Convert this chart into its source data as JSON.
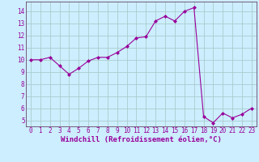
{
  "x": [
    0,
    1,
    2,
    3,
    4,
    5,
    6,
    7,
    8,
    9,
    10,
    11,
    12,
    13,
    14,
    15,
    16,
    17,
    18,
    19,
    20,
    21,
    22,
    23
  ],
  "y": [
    10.0,
    10.0,
    10.2,
    9.5,
    8.8,
    9.3,
    9.9,
    10.2,
    10.2,
    10.6,
    11.1,
    11.8,
    11.9,
    13.2,
    13.6,
    13.2,
    14.0,
    14.3,
    5.3,
    4.8,
    5.6,
    5.2,
    5.5,
    6.0
  ],
  "line_color": "#990099",
  "marker": "D",
  "marker_size": 2,
  "bg_color": "#cceeff",
  "grid_color": "#aacccc",
  "xlabel": "Windchill (Refroidissement éolien,°C)",
  "ylabel": "",
  "ylim": [
    4.5,
    14.8
  ],
  "xlim": [
    -0.5,
    23.5
  ],
  "yticks": [
    5,
    6,
    7,
    8,
    9,
    10,
    11,
    12,
    13,
    14
  ],
  "xticks": [
    0,
    1,
    2,
    3,
    4,
    5,
    6,
    7,
    8,
    9,
    10,
    11,
    12,
    13,
    14,
    15,
    16,
    17,
    18,
    19,
    20,
    21,
    22,
    23
  ],
  "tick_label_size": 5.5,
  "xlabel_size": 6.5,
  "spine_color": "#664466"
}
